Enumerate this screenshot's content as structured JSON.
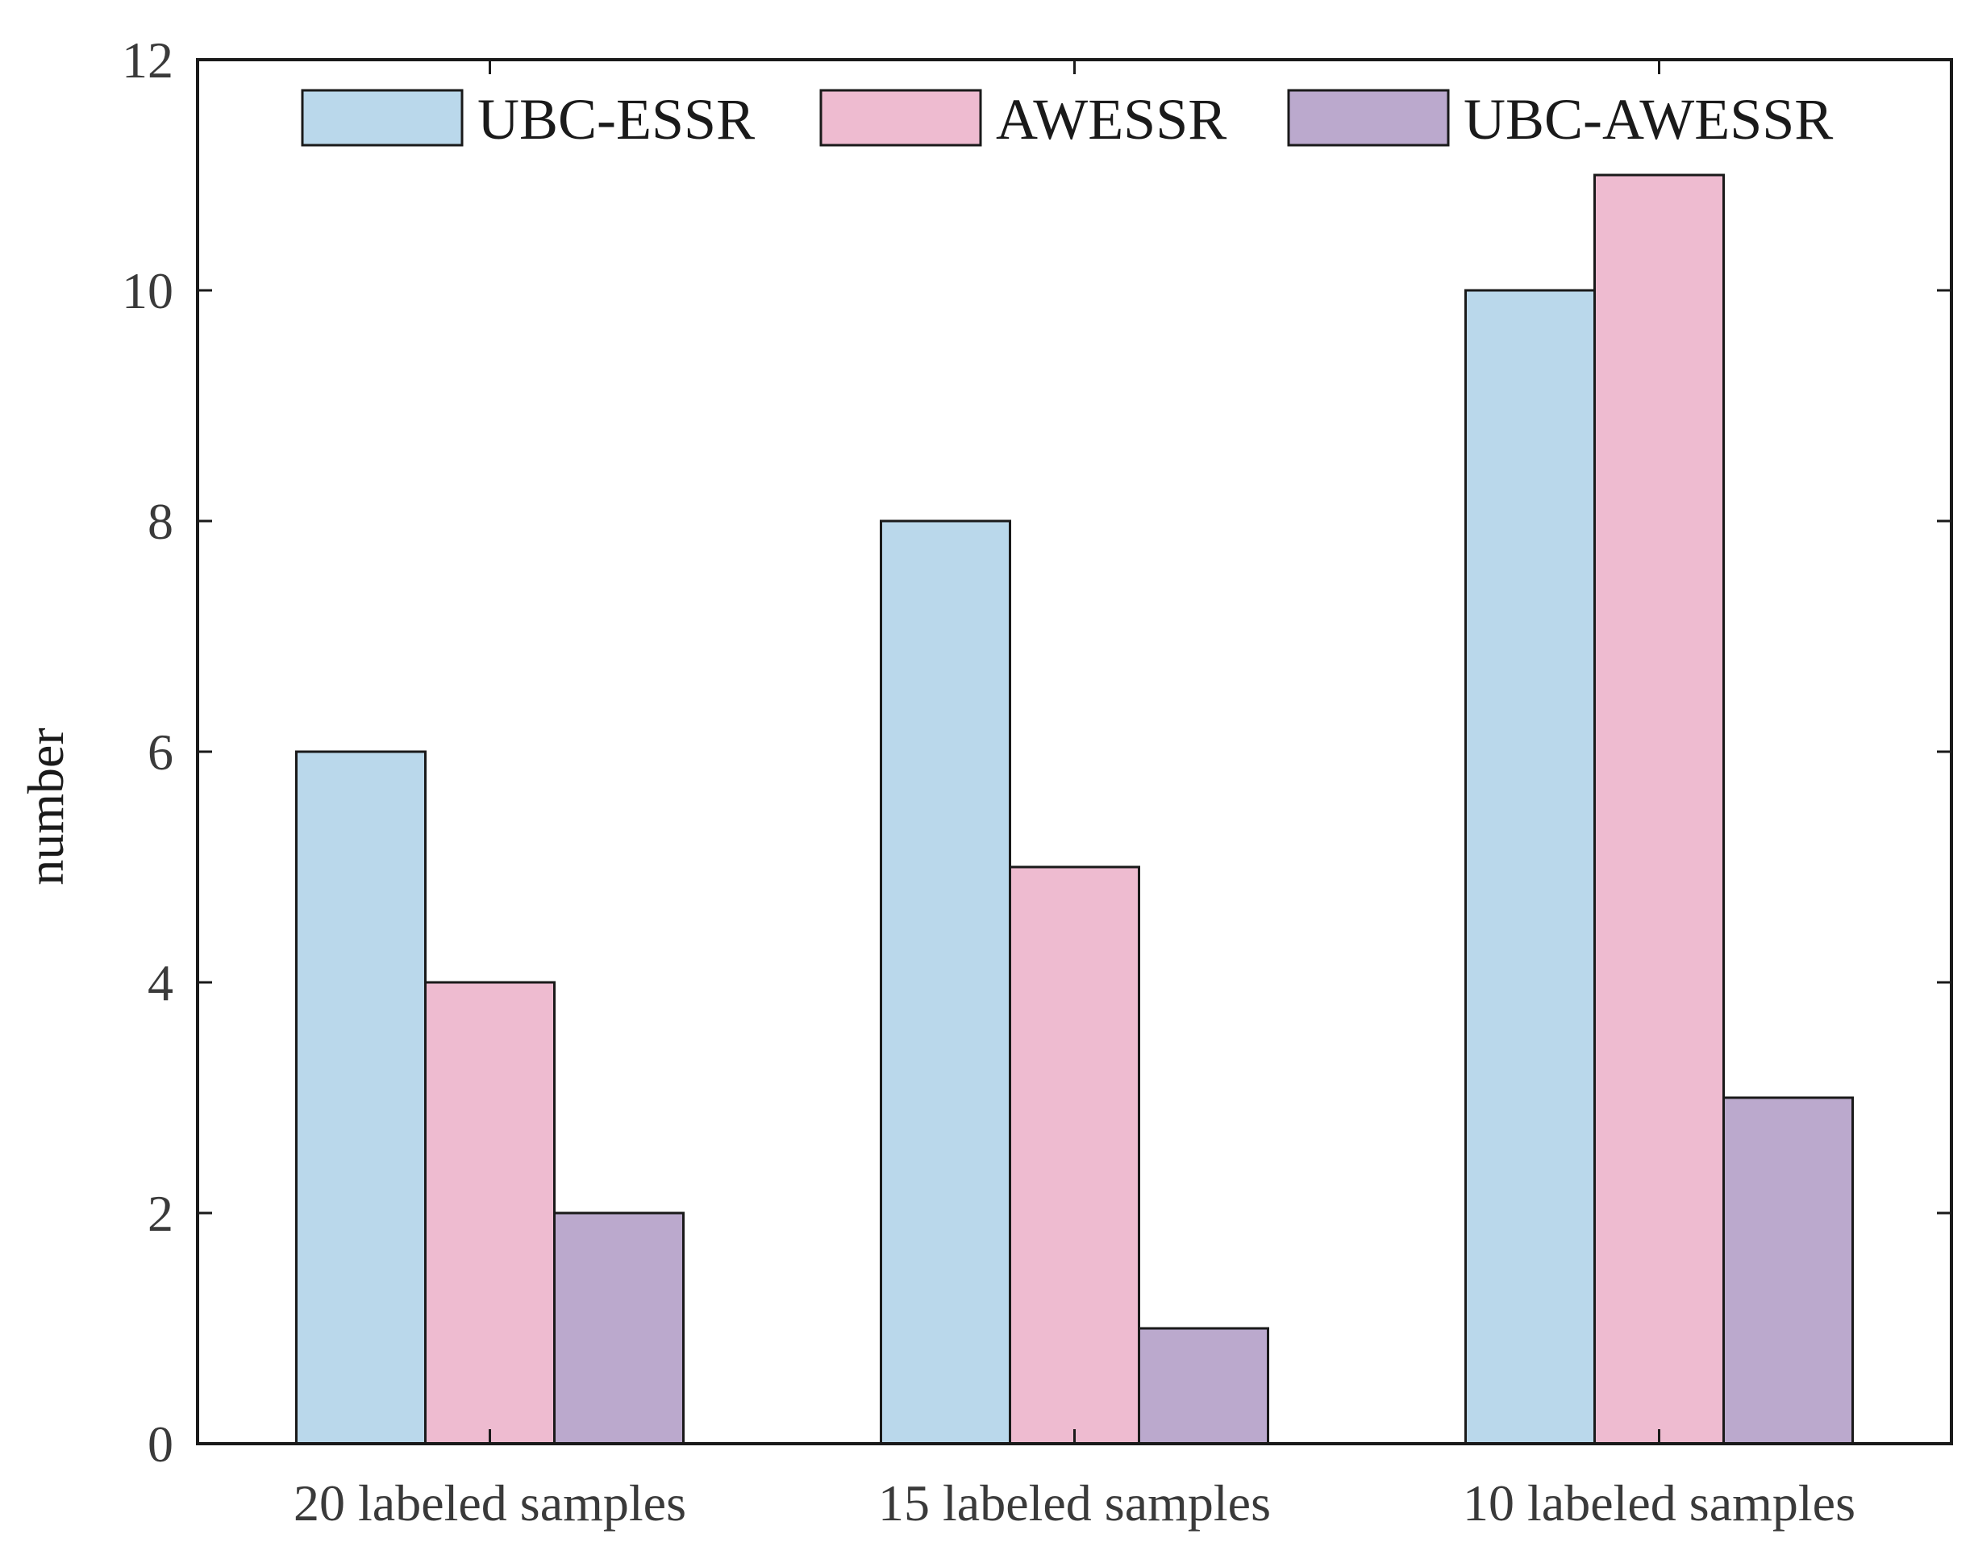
{
  "chart_data": {
    "type": "bar",
    "categories": [
      "20 labeled samples",
      "15 labeled samples",
      "10 labeled samples"
    ],
    "series": [
      {
        "name": "UBC-ESSR",
        "values": [
          6,
          8,
          10
        ],
        "color": "#bad8eb"
      },
      {
        "name": "AWESSR",
        "values": [
          4,
          5,
          11
        ],
        "color": "#eebbd0"
      },
      {
        "name": "UBC-AWESSR",
        "values": [
          2,
          1,
          3
        ],
        "color": "#bba9cd"
      }
    ],
    "ylabel": "number",
    "xlabel": "",
    "ylim": [
      0,
      12
    ],
    "yticks": [
      "0",
      "2",
      "4",
      "6",
      "8",
      "10",
      "12"
    ],
    "legend_position": "top",
    "grid": false
  }
}
